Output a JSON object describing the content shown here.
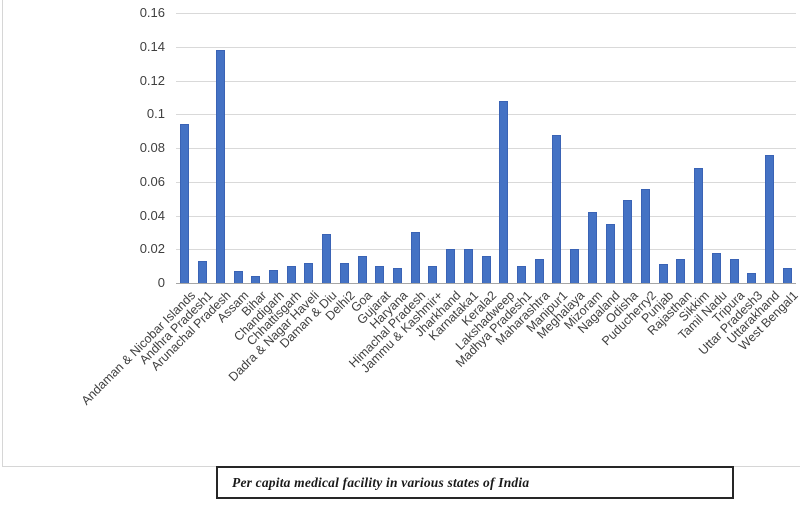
{
  "chart_data": {
    "type": "bar",
    "title": "",
    "caption": "Per capita medical facility in various states of India",
    "categories": [
      "Andaman & Nicobar Islands",
      "Andhra Pradesh1",
      "Arunachal Pradesh",
      "Assam",
      "Bihar",
      "Chandigarh",
      "Chhattisgarh",
      "Dadra & Nagar Haveli",
      "Daman & Diu",
      "Delhi2",
      "Goa",
      "Gujarat",
      "Haryana",
      "Himachal Pradesh",
      "Jammu & Kashmir+",
      "Jharkhand",
      "Karnataka1",
      "Kerala2",
      "Lakshadweep",
      "Madhya Pradesh1",
      "Maharashtra",
      "Manipur1",
      "Meghalaya",
      "Mizoram",
      "Nagaland",
      "Odisha",
      "Puducherry2",
      "Punjab",
      "Rajasthan",
      "Sikkim",
      "Tamil Nadu",
      "Tripura",
      "Uttar Pradesh3",
      "Uttarakhand",
      "West Bengal1"
    ],
    "values": [
      0.094,
      0.013,
      0.138,
      0.007,
      0.004,
      0.008,
      0.01,
      0.012,
      0.029,
      0.012,
      0.016,
      0.01,
      0.009,
      0.03,
      0.01,
      0.02,
      0.02,
      0.016,
      0.108,
      0.01,
      0.014,
      0.088,
      0.02,
      0.042,
      0.035,
      0.049,
      0.056,
      0.011,
      0.014,
      0.068,
      0.018,
      0.014,
      0.006,
      0.076,
      0.009
    ],
    "xlabel": "",
    "ylabel": "",
    "ylim": [
      0,
      0.16
    ],
    "ytick_labels": [
      "0",
      "0.02",
      "0.04",
      "0.06",
      "0.08",
      "0.1",
      "0.12",
      "0.14",
      "0.16"
    ],
    "grid": true,
    "legend_position": "none",
    "bar_color": "#4472c4",
    "bar_border_color": "#3a63b5",
    "gridline_color": "#d9d9d9",
    "axis_line_color": "#a6a6a6",
    "label_color": "#3f3f3f"
  }
}
